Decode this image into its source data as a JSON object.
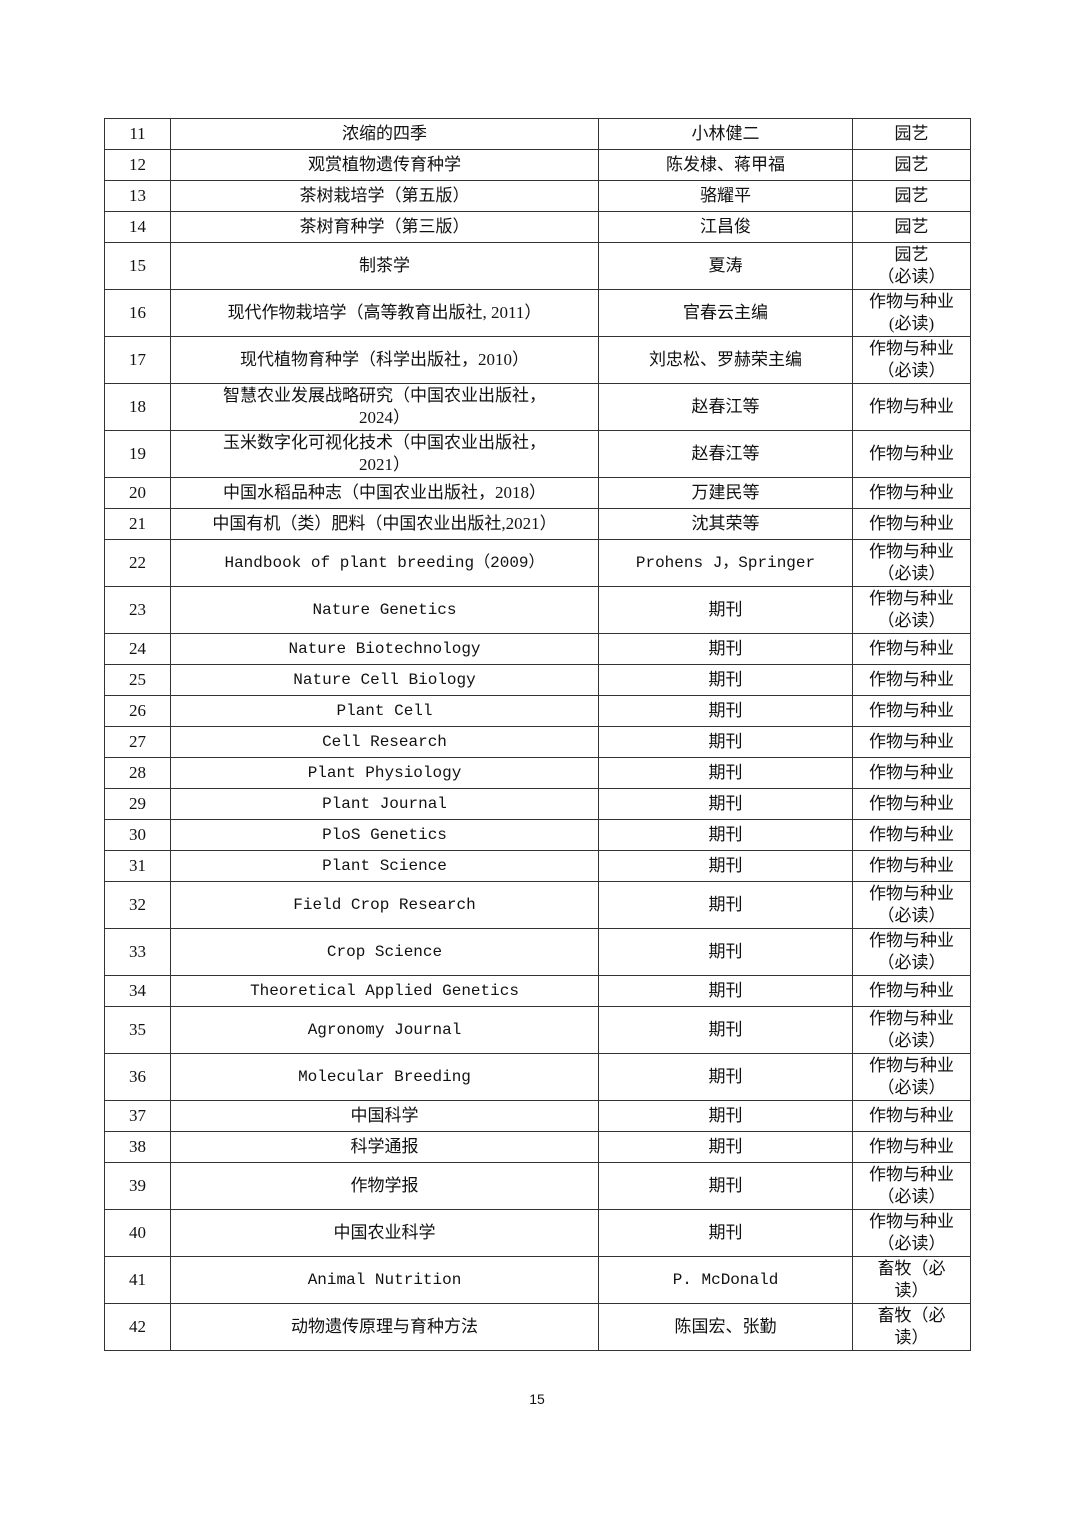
{
  "rows": [
    {
      "no": "11",
      "title": "浓缩的四季",
      "author": "小林健二",
      "category": "园艺"
    },
    {
      "no": "12",
      "title": "观赏植物遗传育种学",
      "author": "陈发棣、蒋甲福",
      "category": "园艺"
    },
    {
      "no": "13",
      "title": "茶树栽培学（第五版）",
      "author": "骆耀平",
      "category": "园艺"
    },
    {
      "no": "14",
      "title": "茶树育种学（第三版）",
      "author": "江昌俊",
      "category": "园艺"
    },
    {
      "no": "15",
      "title": "制茶学",
      "author": "夏涛",
      "category": "园艺\n（必读）"
    },
    {
      "no": "16",
      "title": "现代作物栽培学（高等教育出版社, 2011）",
      "author": "官春云主编",
      "category": "作物与种业\n(必读)"
    },
    {
      "no": "17",
      "title": "现代植物育种学（科学出版社，2010）",
      "author": "刘忠松、罗赫荣主编",
      "category": "作物与种业\n（必读）"
    },
    {
      "no": "18",
      "title": "智慧农业发展战略研究（中国农业出版社，\n2024）",
      "author": "赵春江等",
      "category": "作物与种业"
    },
    {
      "no": "19",
      "title": "玉米数字化可视化技术（中国农业出版社，\n2021）",
      "author": "赵春江等",
      "category": "作物与种业"
    },
    {
      "no": "20",
      "title": "中国水稻品种志（中国农业出版社，2018）",
      "author": "万建民等",
      "category": "作物与种业"
    },
    {
      "no": "21",
      "title": "中国有机（类）肥料（中国农业出版社,2021）",
      "author": "沈其荣等",
      "category": "作物与种业"
    },
    {
      "no": "22",
      "title": "Handbook of plant breeding（2009）",
      "author": "Prohens J，Springer",
      "category": "作物与种业\n（必读）",
      "latin": true
    },
    {
      "no": "23",
      "title": "Nature Genetics",
      "author": "期刊",
      "category": "作物与种业\n（必读）",
      "latin": true
    },
    {
      "no": "24",
      "title": "Nature Biotechnology",
      "author": "期刊",
      "category": "作物与种业",
      "latin": true
    },
    {
      "no": "25",
      "title": "Nature Cell Biology",
      "author": "期刊",
      "category": "作物与种业",
      "latin": true
    },
    {
      "no": "26",
      "title": "Plant Cell",
      "author": "期刊",
      "category": "作物与种业",
      "latin": true
    },
    {
      "no": "27",
      "title": "Cell Research",
      "author": "期刊",
      "category": "作物与种业",
      "latin": true
    },
    {
      "no": "28",
      "title": "Plant Physiology",
      "author": "期刊",
      "category": "作物与种业",
      "latin": true
    },
    {
      "no": "29",
      "title": "Plant Journal",
      "author": "期刊",
      "category": "作物与种业",
      "latin": true
    },
    {
      "no": "30",
      "title": "PloS Genetics",
      "author": "期刊",
      "category": "作物与种业",
      "latin": true
    },
    {
      "no": "31",
      "title": "Plant Science",
      "author": "期刊",
      "category": "作物与种业",
      "latin": true
    },
    {
      "no": "32",
      "title": "Field Crop Research",
      "author": "期刊",
      "category": "作物与种业\n（必读）",
      "latin": true
    },
    {
      "no": "33",
      "title": "Crop Science",
      "author": "期刊",
      "category": "作物与种业\n（必读）",
      "latin": true
    },
    {
      "no": "34",
      "title": "Theoretical Applied Genetics",
      "author": "期刊",
      "category": "作物与种业",
      "latin": true
    },
    {
      "no": "35",
      "title": "Agronomy Journal",
      "author": "期刊",
      "category": "作物与种业\n（必读）",
      "latin": true
    },
    {
      "no": "36",
      "title": "Molecular Breeding",
      "author": "期刊",
      "category": "作物与种业\n（必读）",
      "latin": true
    },
    {
      "no": "37",
      "title": "中国科学",
      "author": "期刊",
      "category": "作物与种业"
    },
    {
      "no": "38",
      "title": "科学通报",
      "author": "期刊",
      "category": "作物与种业"
    },
    {
      "no": "39",
      "title": "作物学报",
      "author": "期刊",
      "category": "作物与种业\n（必读）"
    },
    {
      "no": "40",
      "title": "中国农业科学",
      "author": "期刊",
      "category": "作物与种业\n（必读）"
    },
    {
      "no": "41",
      "title": "Animal Nutrition",
      "author": "P. McDonald",
      "category": "畜牧（必\n读）",
      "latin": true
    },
    {
      "no": "42",
      "title": "动物遗传原理与育种方法",
      "author": "陈国宏、张勤",
      "category": "畜牧（必\n读）"
    }
  ],
  "page_number": "15"
}
